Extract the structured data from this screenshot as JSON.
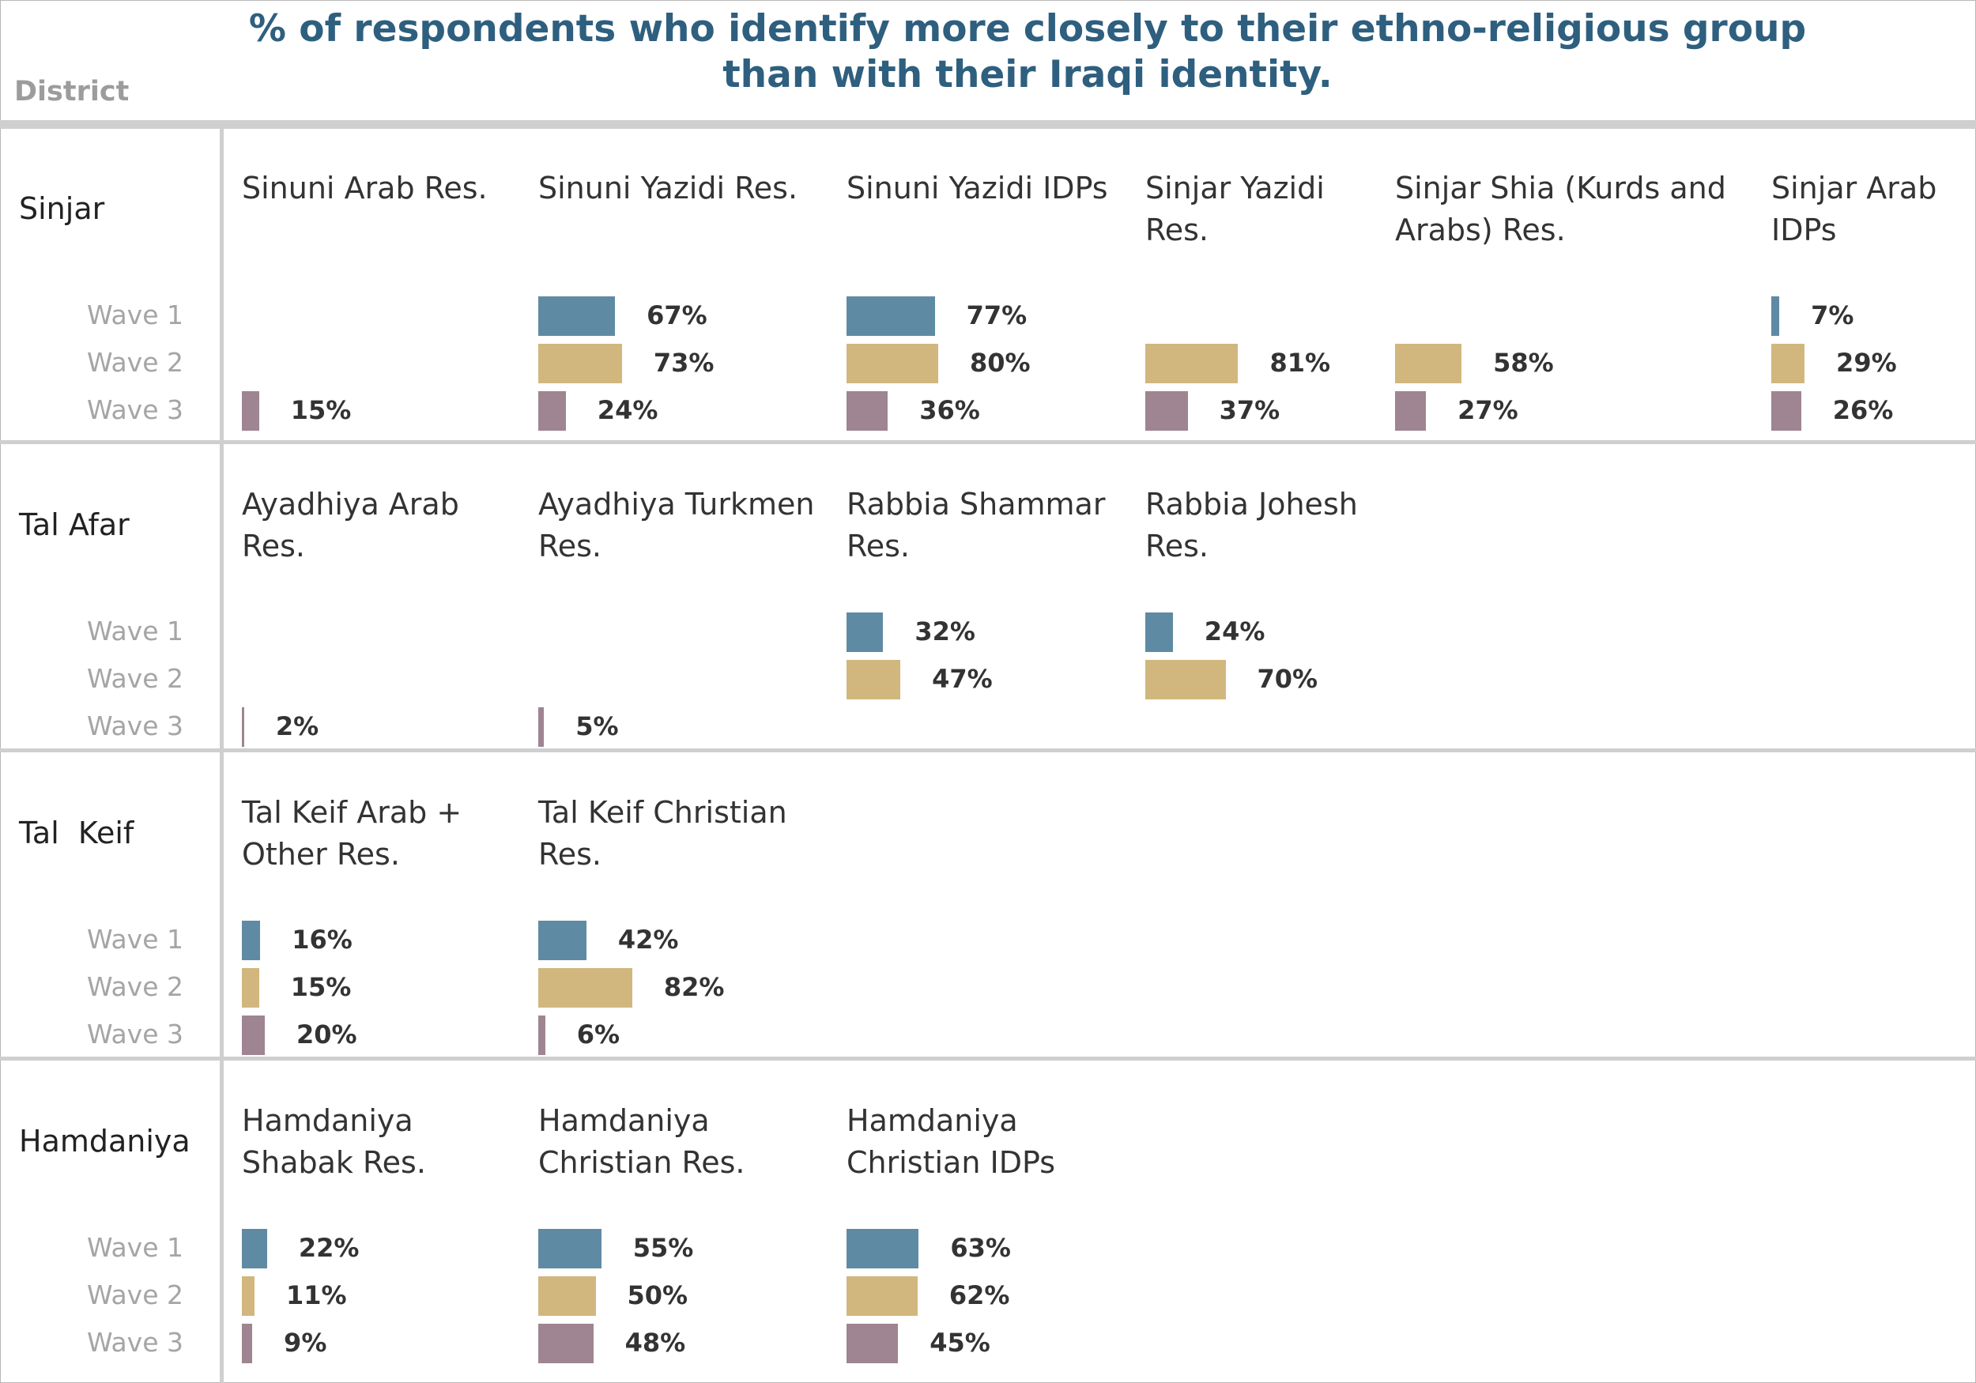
{
  "title_lines": [
    "% of respondents who identify more closely to their ethno-religious group",
    "than with their Iraqi identity."
  ],
  "district_header": "District",
  "colors": {
    "wave1": "#5f8aa3",
    "wave2": "#d1b77e",
    "wave3": "#9e8591",
    "title": "#2e5f7f",
    "rule": "#cfcfcf"
  },
  "chart_data": {
    "type": "bar",
    "orientation": "horizontal",
    "title": "% of respondents who identify more closely to their ethno-religious group than with their Iraqi identity.",
    "series": [
      "Wave 1",
      "Wave 2",
      "Wave 3"
    ],
    "xlim": [
      0,
      100
    ],
    "unit": "%",
    "districts": [
      {
        "name": "Sinjar",
        "groups": [
          {
            "label": "Sinuni Arab Res.",
            "values": [
              null,
              null,
              15
            ]
          },
          {
            "label": "Sinuni Yazidi Res.",
            "values": [
              67,
              73,
              24
            ]
          },
          {
            "label": "Sinuni Yazidi IDPs",
            "values": [
              77,
              80,
              36
            ]
          },
          {
            "label": "Sinjar Yazidi Res.",
            "values": [
              null,
              81,
              37
            ]
          },
          {
            "label": "Sinjar Shia (Kurds and Arabs) Res.",
            "values": [
              null,
              58,
              27
            ]
          },
          {
            "label": "Sinjar Arab IDPs",
            "values": [
              7,
              29,
              26
            ]
          }
        ]
      },
      {
        "name": "Tal Afar",
        "groups": [
          {
            "label": "Ayadhiya Arab Res.",
            "values": [
              null,
              null,
              2
            ]
          },
          {
            "label": "Ayadhiya Turkmen Res.",
            "values": [
              null,
              null,
              5
            ]
          },
          {
            "label": "Rabbia Shammar Res.",
            "values": [
              32,
              47,
              null
            ]
          },
          {
            "label": "Rabbia Johesh Res.",
            "values": [
              24,
              70,
              null
            ]
          }
        ]
      },
      {
        "name": "Tal  Keif",
        "groups": [
          {
            "label": "Tal Keif Arab + Other Res.",
            "values": [
              16,
              15,
              20
            ]
          },
          {
            "label": "Tal Keif Christian Res.",
            "values": [
              42,
              82,
              6
            ]
          }
        ]
      },
      {
        "name": "Hamdaniya",
        "groups": [
          {
            "label": "Hamdaniya Shabak Res.",
            "values": [
              22,
              11,
              9
            ]
          },
          {
            "label": "Hamdaniya Christian Res.",
            "values": [
              55,
              50,
              48
            ]
          },
          {
            "label": "Hamdaniya Christian IDPs",
            "values": [
              63,
              62,
              45
            ]
          }
        ]
      }
    ]
  }
}
